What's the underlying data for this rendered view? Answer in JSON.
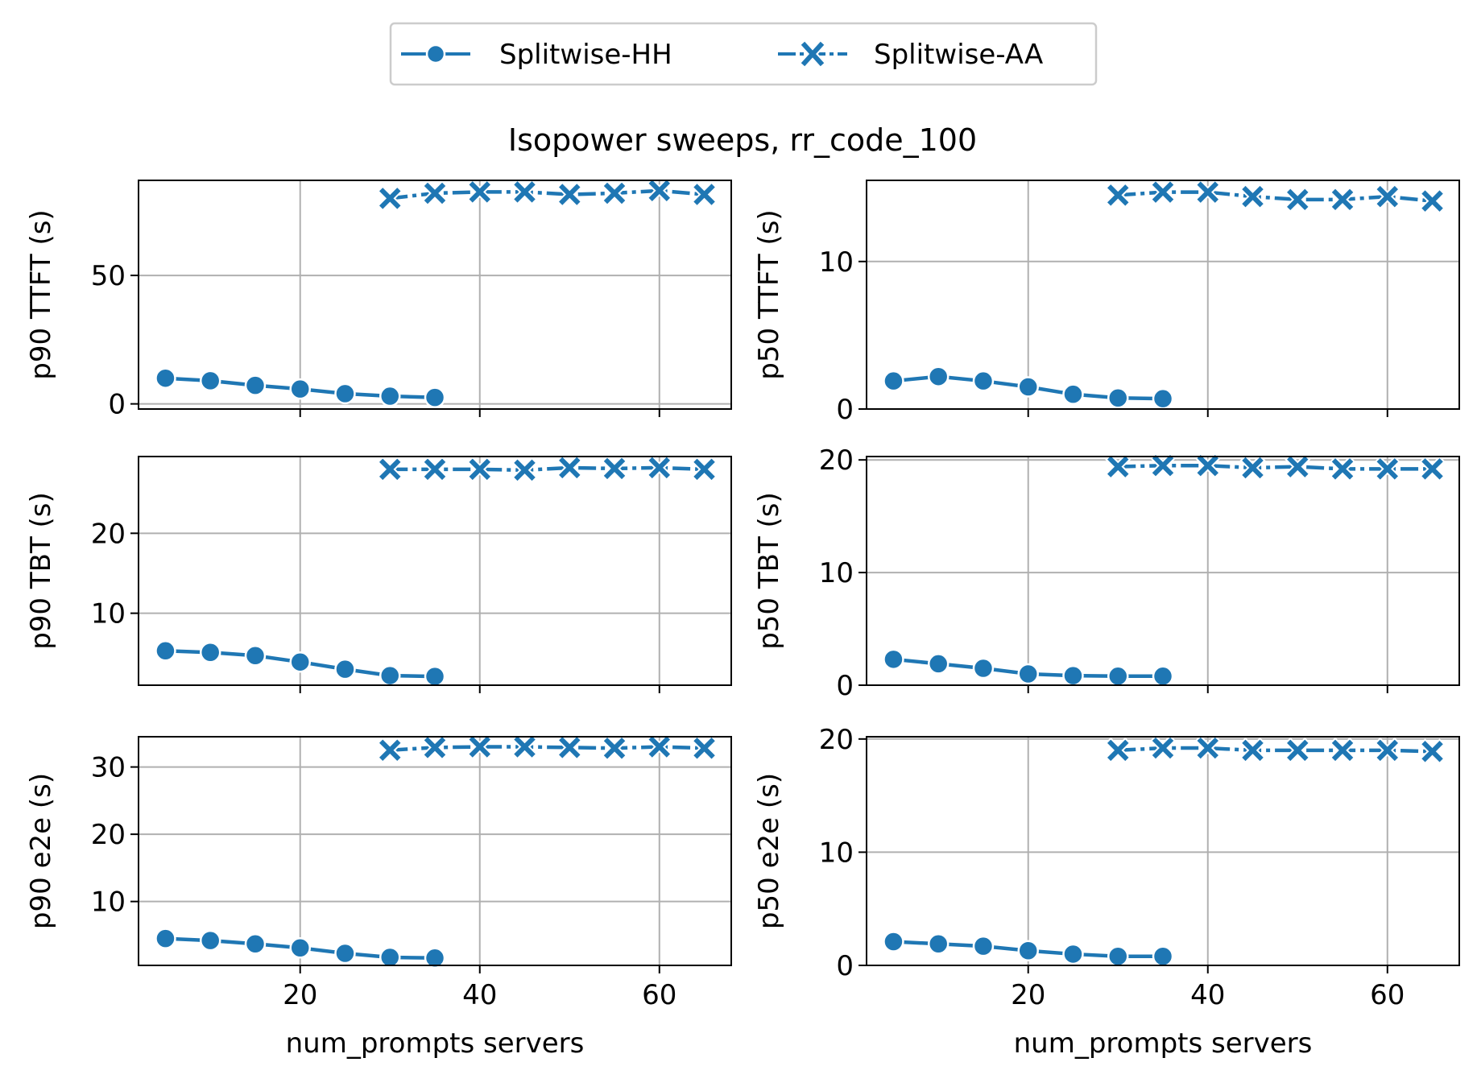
{
  "figure_title": "Isopower sweeps, rr_code_100",
  "legend": {
    "items": [
      {
        "label": "Splitwise-HH",
        "marker": "circle",
        "linestyle": "solid"
      },
      {
        "label": "Splitwise-AA",
        "marker": "x",
        "linestyle": "dashdot"
      }
    ]
  },
  "colors": {
    "series": "#1f77b4",
    "grid": "#b0b0b0",
    "axes": "#000000"
  },
  "chart_data": [
    {
      "type": "line",
      "ylabel": "p90 TTFT (s)",
      "xlabel": "",
      "xlim": [
        2,
        68
      ],
      "ylim": [
        -2,
        87
      ],
      "xticks": [
        20,
        40,
        60
      ],
      "yticks": [
        0,
        50
      ],
      "grid": true,
      "series": [
        {
          "name": "Splitwise-HH",
          "x": [
            5,
            10,
            15,
            20,
            25,
            30,
            35
          ],
          "y": [
            10,
            9,
            7.2,
            5.8,
            4,
            3,
            2.5
          ]
        },
        {
          "name": "Splitwise-AA",
          "x": [
            30,
            35,
            40,
            45,
            50,
            55,
            60,
            65
          ],
          "y": [
            80,
            82,
            82.5,
            82.5,
            81.5,
            82,
            83,
            81.5
          ]
        }
      ]
    },
    {
      "type": "line",
      "ylabel": "p50 TTFT (s)",
      "xlabel": "",
      "xlim": [
        2,
        68
      ],
      "ylim": [
        0,
        15.5
      ],
      "xticks": [
        20,
        40,
        60
      ],
      "yticks": [
        0,
        10
      ],
      "grid": true,
      "series": [
        {
          "name": "Splitwise-HH",
          "x": [
            5,
            10,
            15,
            20,
            25,
            30,
            35
          ],
          "y": [
            1.9,
            2.2,
            1.9,
            1.5,
            1.0,
            0.75,
            0.7
          ]
        },
        {
          "name": "Splitwise-AA",
          "x": [
            30,
            35,
            40,
            45,
            50,
            55,
            60,
            65
          ],
          "y": [
            14.5,
            14.7,
            14.7,
            14.4,
            14.2,
            14.2,
            14.4,
            14.1
          ]
        }
      ]
    },
    {
      "type": "line",
      "ylabel": "p90 TBT (s)",
      "xlabel": "",
      "xlim": [
        2,
        68
      ],
      "ylim": [
        1,
        29.6
      ],
      "xticks": [
        20,
        40,
        60
      ],
      "yticks": [
        10,
        20
      ],
      "grid": true,
      "series": [
        {
          "name": "Splitwise-HH",
          "x": [
            5,
            10,
            15,
            20,
            25,
            30,
            35
          ],
          "y": [
            5.3,
            5.1,
            4.7,
            3.9,
            3.0,
            2.2,
            2.1
          ]
        },
        {
          "name": "Splitwise-AA",
          "x": [
            30,
            35,
            40,
            45,
            50,
            55,
            60,
            65
          ],
          "y": [
            28.0,
            28.0,
            28.0,
            27.9,
            28.2,
            28.1,
            28.2,
            28.0
          ]
        }
      ]
    },
    {
      "type": "line",
      "ylabel": "p50 TBT (s)",
      "xlabel": "",
      "xlim": [
        2,
        68
      ],
      "ylim": [
        0,
        20.3
      ],
      "xticks": [
        20,
        40,
        60
      ],
      "yticks": [
        0,
        10,
        20
      ],
      "grid": true,
      "series": [
        {
          "name": "Splitwise-HH",
          "x": [
            5,
            10,
            15,
            20,
            25,
            30,
            35
          ],
          "y": [
            2.3,
            1.9,
            1.5,
            1.0,
            0.85,
            0.8,
            0.8
          ]
        },
        {
          "name": "Splitwise-AA",
          "x": [
            30,
            35,
            40,
            45,
            50,
            55,
            60,
            65
          ],
          "y": [
            19.4,
            19.5,
            19.5,
            19.3,
            19.4,
            19.2,
            19.2,
            19.2
          ]
        }
      ]
    },
    {
      "type": "line",
      "ylabel": "p90 e2e (s)",
      "xlabel": "num_prompts servers",
      "xlim": [
        2,
        68
      ],
      "ylim": [
        0.5,
        34.5
      ],
      "xticks": [
        20,
        40,
        60
      ],
      "yticks": [
        10,
        20,
        30
      ],
      "grid": true,
      "series": [
        {
          "name": "Splitwise-HH",
          "x": [
            5,
            10,
            15,
            20,
            25,
            30,
            35
          ],
          "y": [
            4.5,
            4.2,
            3.7,
            3.1,
            2.3,
            1.7,
            1.6
          ]
        },
        {
          "name": "Splitwise-AA",
          "x": [
            30,
            35,
            40,
            45,
            50,
            55,
            60,
            65
          ],
          "y": [
            32.5,
            32.9,
            33.0,
            33.0,
            32.9,
            32.8,
            33.0,
            32.8
          ]
        }
      ]
    },
    {
      "type": "line",
      "ylabel": "p50 e2e (s)",
      "xlabel": "num_prompts servers",
      "xlim": [
        2,
        68
      ],
      "ylim": [
        0,
        20.2
      ],
      "xticks": [
        20,
        40,
        60
      ],
      "yticks": [
        0,
        10,
        20
      ],
      "grid": true,
      "series": [
        {
          "name": "Splitwise-HH",
          "x": [
            5,
            10,
            15,
            20,
            25,
            30,
            35
          ],
          "y": [
            2.1,
            1.9,
            1.7,
            1.3,
            1.0,
            0.8,
            0.8
          ]
        },
        {
          "name": "Splitwise-AA",
          "x": [
            30,
            35,
            40,
            45,
            50,
            55,
            60,
            65
          ],
          "y": [
            19.0,
            19.2,
            19.2,
            19.0,
            19.0,
            19.0,
            19.0,
            18.9
          ]
        }
      ]
    }
  ]
}
